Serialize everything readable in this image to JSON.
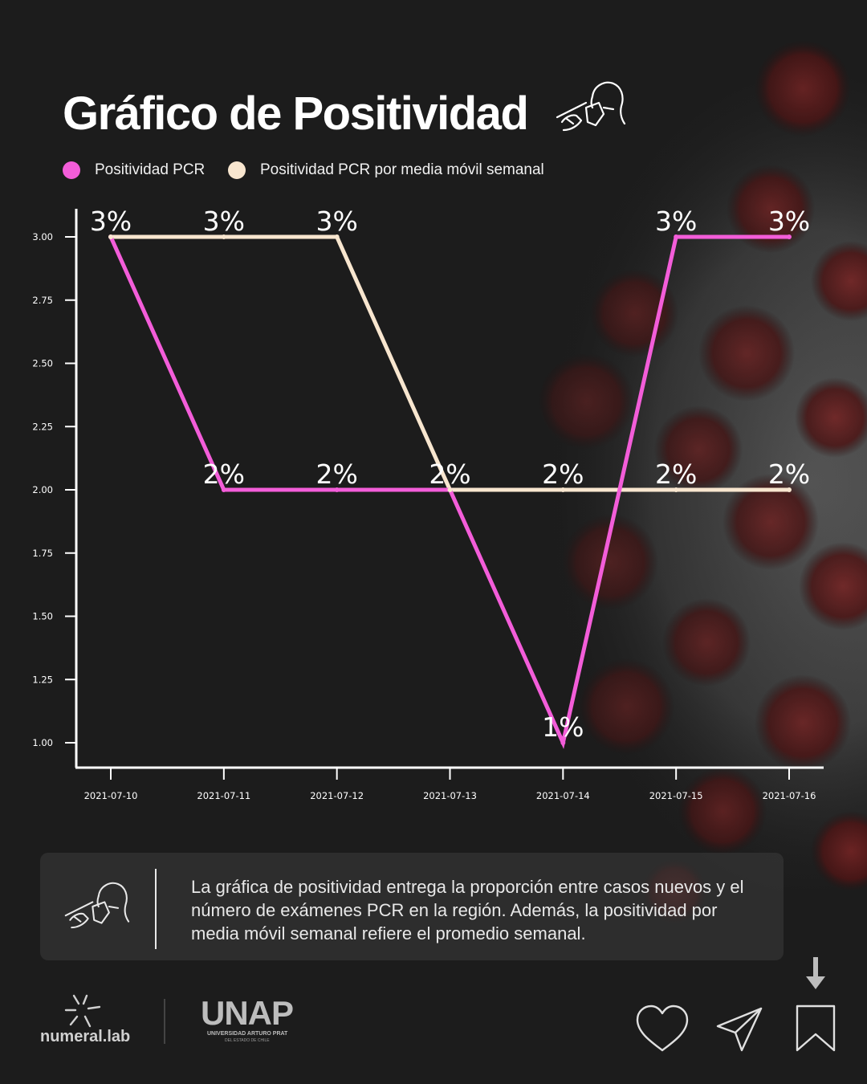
{
  "title": "Gráfico de Positividad",
  "legend": [
    {
      "label": "Positividad PCR",
      "color": "#f35dd9"
    },
    {
      "label": "Positividad PCR por media móvil semanal",
      "color": "#f8e6cf"
    }
  ],
  "chart_data": {
    "type": "line",
    "x": [
      "2021-07-10",
      "2021-07-11",
      "2021-07-12",
      "2021-07-13",
      "2021-07-14",
      "2021-07-15",
      "2021-07-16"
    ],
    "series": [
      {
        "name": "Positividad PCR",
        "color": "#f35dd9",
        "values": [
          3,
          2,
          2,
          2,
          1,
          3,
          3
        ],
        "labels": [
          "3%",
          "2%",
          "2%",
          "2%",
          "1%",
          "3%",
          "3%"
        ]
      },
      {
        "name": "Positividad PCR por media móvil semanal",
        "color": "#f8e6cf",
        "values": [
          3,
          3,
          3,
          2,
          2,
          2,
          2
        ],
        "labels": [
          "3%",
          "3%",
          "3%",
          "2%",
          "2%",
          "2%",
          "2%"
        ]
      }
    ],
    "ylim": [
      1.0,
      3.0
    ],
    "yticks": [
      "1.00",
      "1.25",
      "1.50",
      "1.75",
      "2.00",
      "2.25",
      "2.50",
      "2.75",
      "3.00"
    ],
    "grid": false,
    "legend_position": "top-left"
  },
  "info": {
    "text": "La gráfica de positividad entrega la proporción entre casos nuevos y el número de exámenes PCR en la región. Además, la positividad por media móvil semanal refiere el promedio semanal.",
    "icon": "test-swab-icon"
  },
  "footer": {
    "numeral": "numeral.lab",
    "unap": "UNAP",
    "unap_sub": "UNIVERSIDAD ARTURO PRAT",
    "unap_sub2": "DEL ESTADO DE CHILE",
    "icons": [
      "heart-icon",
      "send-icon",
      "bookmark-icon",
      "arrow-down-icon"
    ]
  }
}
